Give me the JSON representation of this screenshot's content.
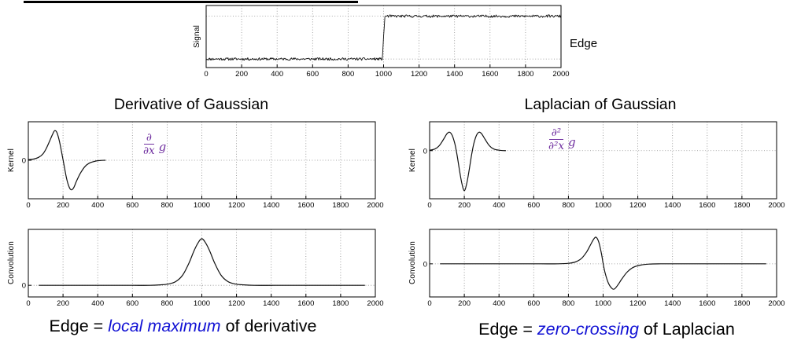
{
  "colors": {
    "curve": "#111111",
    "grid": "#8a8a8a",
    "purple": "#7030A0",
    "blue": "#1212d4",
    "text": "#000000"
  },
  "header": {
    "edge_label": "Edge"
  },
  "titles": {
    "left": "Derivative of Gaussian",
    "right": "Laplacian of Gaussian"
  },
  "math": {
    "left": {
      "num": "∂",
      "den": "∂x",
      "suffix": "g"
    },
    "right": {
      "num": "∂²",
      "den": "∂²x",
      "suffix": "g"
    }
  },
  "captions": {
    "left": {
      "pre": "Edge = ",
      "em": "local maximum",
      "post": " of derivative"
    },
    "right": {
      "pre": "Edge = ",
      "em": "zero-crossing",
      "post": " of Laplacian"
    }
  },
  "chart_data": [
    {
      "name": "signal",
      "type": "line",
      "ylabel": "Signal",
      "xlim": [
        0,
        2000
      ],
      "ylim": [
        -0.2,
        1.25
      ],
      "xticks": [
        0,
        200,
        400,
        600,
        800,
        1000,
        1200,
        1400,
        1600,
        1800,
        2000
      ],
      "yticks": [],
      "grid_x": true,
      "grid_y": [
        0,
        1
      ],
      "series": [
        {
          "kind": "step",
          "low": 0,
          "high": 1,
          "edge_x": 1000,
          "rise": 14,
          "noise": 0.03,
          "seed": 11,
          "samples": 520,
          "lw": 0.9
        }
      ]
    },
    {
      "name": "derivative-of-gaussian-kernel",
      "type": "line",
      "ylabel": "Kernel",
      "xlim": [
        0,
        2000
      ],
      "ylim": [
        -1.3,
        1.3
      ],
      "xticks": [
        0,
        200,
        400,
        600,
        800,
        1000,
        1200,
        1400,
        1600,
        1800,
        2000
      ],
      "yticks": [
        {
          "v": 0,
          "label": "0"
        }
      ],
      "grid_x": true,
      "grid_y": [
        0
      ],
      "series": [
        {
          "kind": "points",
          "smooth": true,
          "lw": 1.2,
          "points": [
            [
              0,
              0.02
            ],
            [
              30,
              0.04
            ],
            [
              60,
              0.1
            ],
            [
              85,
              0.22
            ],
            [
              105,
              0.42
            ],
            [
              125,
              0.68
            ],
            [
              140,
              0.88
            ],
            [
              152,
              1.0
            ],
            [
              165,
              0.93
            ],
            [
              180,
              0.62
            ],
            [
              200,
              0.02
            ],
            [
              220,
              -0.6
            ],
            [
              235,
              -0.9
            ],
            [
              248,
              -1.0
            ],
            [
              262,
              -0.92
            ],
            [
              278,
              -0.7
            ],
            [
              300,
              -0.44
            ],
            [
              325,
              -0.22
            ],
            [
              350,
              -0.1
            ],
            [
              380,
              -0.04
            ],
            [
              410,
              -0.01
            ],
            [
              445,
              0
            ]
          ]
        }
      ]
    },
    {
      "name": "laplacian-of-gaussian-kernel",
      "type": "line",
      "ylabel": "Kernel",
      "xlim": [
        0,
        2000
      ],
      "ylim": [
        -1.2,
        0.72
      ],
      "xticks": [
        0,
        200,
        400,
        600,
        800,
        1000,
        1200,
        1400,
        1600,
        1800,
        2000
      ],
      "yticks": [
        {
          "v": 0,
          "label": "0"
        }
      ],
      "grid_x": true,
      "grid_y": [
        0
      ],
      "series": [
        {
          "kind": "points",
          "smooth": true,
          "lw": 1.2,
          "points": [
            [
              0,
              0.01
            ],
            [
              30,
              0.04
            ],
            [
              55,
              0.12
            ],
            [
              80,
              0.28
            ],
            [
              100,
              0.42
            ],
            [
              115,
              0.46
            ],
            [
              130,
              0.38
            ],
            [
              145,
              0.18
            ],
            [
              158,
              -0.1
            ],
            [
              172,
              -0.48
            ],
            [
              185,
              -0.8
            ],
            [
              200,
              -1.0
            ],
            [
              215,
              -0.8
            ],
            [
              228,
              -0.48
            ],
            [
              242,
              -0.1
            ],
            [
              255,
              0.18
            ],
            [
              270,
              0.38
            ],
            [
              285,
              0.46
            ],
            [
              300,
              0.42
            ],
            [
              320,
              0.28
            ],
            [
              345,
              0.12
            ],
            [
              370,
              0.04
            ],
            [
              400,
              0.01
            ],
            [
              440,
              0
            ]
          ]
        }
      ]
    },
    {
      "name": "convolution-with-derivative",
      "type": "line",
      "ylabel": "Convolution",
      "xlim": [
        0,
        2000
      ],
      "ylim": [
        -0.25,
        1.2
      ],
      "xticks": [
        0,
        200,
        400,
        600,
        800,
        1000,
        1200,
        1400,
        1600,
        1800,
        2000
      ],
      "yticks": [
        {
          "v": 0,
          "label": "0"
        }
      ],
      "grid_x": true,
      "grid_y": [
        0
      ],
      "series": [
        {
          "kind": "points",
          "smooth": true,
          "lw": 1.2,
          "points": [
            [
              60,
              0
            ],
            [
              180,
              0
            ],
            [
              320,
              0
            ],
            [
              460,
              0
            ],
            [
              600,
              0
            ],
            [
              700,
              0
            ],
            [
              760,
              0.01
            ],
            [
              810,
              0.03
            ],
            [
              850,
              0.08
            ],
            [
              890,
              0.22
            ],
            [
              925,
              0.47
            ],
            [
              955,
              0.74
            ],
            [
              980,
              0.92
            ],
            [
              1000,
              1.0
            ],
            [
              1020,
              0.92
            ],
            [
              1045,
              0.74
            ],
            [
              1075,
              0.47
            ],
            [
              1110,
              0.22
            ],
            [
              1150,
              0.08
            ],
            [
              1190,
              0.03
            ],
            [
              1240,
              0.01
            ],
            [
              1300,
              0
            ],
            [
              1420,
              0
            ],
            [
              1560,
              0
            ],
            [
              1700,
              0
            ],
            [
              1830,
              0
            ],
            [
              1940,
              0
            ]
          ]
        }
      ]
    },
    {
      "name": "convolution-with-laplacian",
      "type": "line",
      "ylabel": "Convolution",
      "xlim": [
        0,
        2000
      ],
      "ylim": [
        -1.25,
        1.3
      ],
      "xticks": [
        0,
        200,
        400,
        600,
        800,
        1000,
        1200,
        1400,
        1600,
        1800,
        2000
      ],
      "yticks": [
        {
          "v": 0,
          "label": "0"
        }
      ],
      "grid_x": true,
      "grid_y": [
        0
      ],
      "series": [
        {
          "kind": "points",
          "smooth": true,
          "lw": 1.2,
          "points": [
            [
              60,
              0
            ],
            [
              200,
              0
            ],
            [
              350,
              0
            ],
            [
              500,
              0
            ],
            [
              640,
              0
            ],
            [
              740,
              0
            ],
            [
              800,
              0.02
            ],
            [
              840,
              0.07
            ],
            [
              875,
              0.2
            ],
            [
              905,
              0.45
            ],
            [
              930,
              0.75
            ],
            [
              948,
              0.95
            ],
            [
              960,
              1.0
            ],
            [
              975,
              0.82
            ],
            [
              990,
              0.4
            ],
            [
              1000,
              0.02
            ],
            [
              1012,
              -0.35
            ],
            [
              1030,
              -0.72
            ],
            [
              1050,
              -0.92
            ],
            [
              1065,
              -0.95
            ],
            [
              1085,
              -0.8
            ],
            [
              1110,
              -0.55
            ],
            [
              1140,
              -0.3
            ],
            [
              1175,
              -0.13
            ],
            [
              1215,
              -0.05
            ],
            [
              1265,
              -0.01
            ],
            [
              1330,
              0
            ],
            [
              1450,
              0
            ],
            [
              1580,
              0
            ],
            [
              1720,
              0
            ],
            [
              1850,
              0
            ],
            [
              1940,
              0
            ]
          ]
        }
      ]
    }
  ]
}
